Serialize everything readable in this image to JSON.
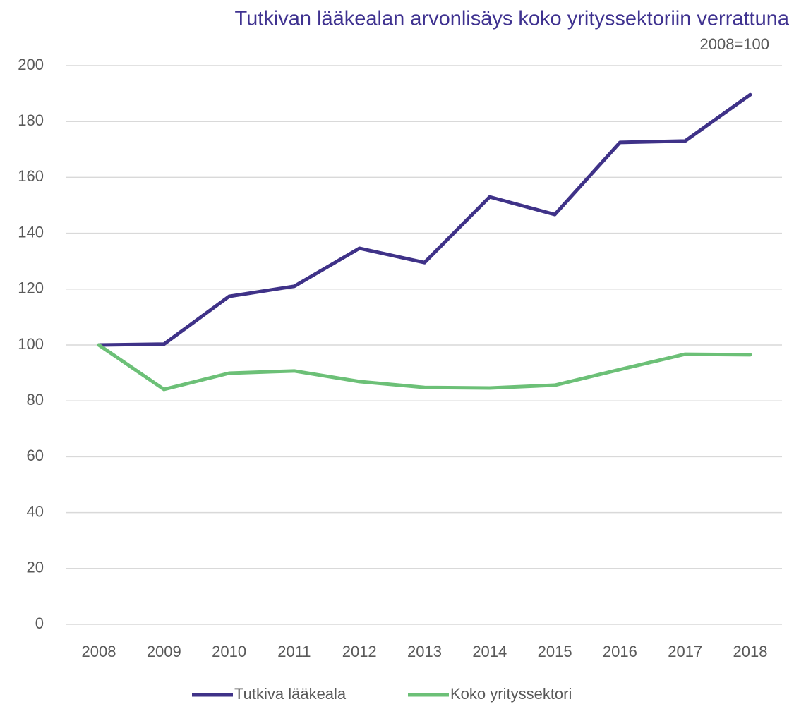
{
  "chart_data": {
    "type": "line",
    "title": "Tutkivan lääkealan arvonlisäys koko yrityssektoriin verrattuna",
    "subtitle": "2008=100",
    "categories": [
      "2008",
      "2009",
      "2010",
      "2011",
      "2012",
      "2013",
      "2014",
      "2015",
      "2016",
      "2017",
      "2018"
    ],
    "series": [
      {
        "name": "Tutkiva lääkeala",
        "color": "#3f3288",
        "values": [
          100,
          100.3,
          117.4,
          121,
          134.6,
          129.5,
          153,
          146.7,
          172.5,
          173,
          189.6
        ]
      },
      {
        "name": "Koko yrityssektori",
        "color": "#6cc077",
        "values": [
          100,
          84.1,
          89.9,
          90.7,
          86.9,
          84.8,
          84.6,
          85.6,
          91.2,
          96.7,
          96.5
        ]
      }
    ],
    "ylim": [
      0,
      200
    ],
    "yticks": [
      0,
      20,
      40,
      60,
      80,
      100,
      120,
      140,
      160,
      180,
      200
    ],
    "grid": true,
    "legend": "bottom"
  }
}
